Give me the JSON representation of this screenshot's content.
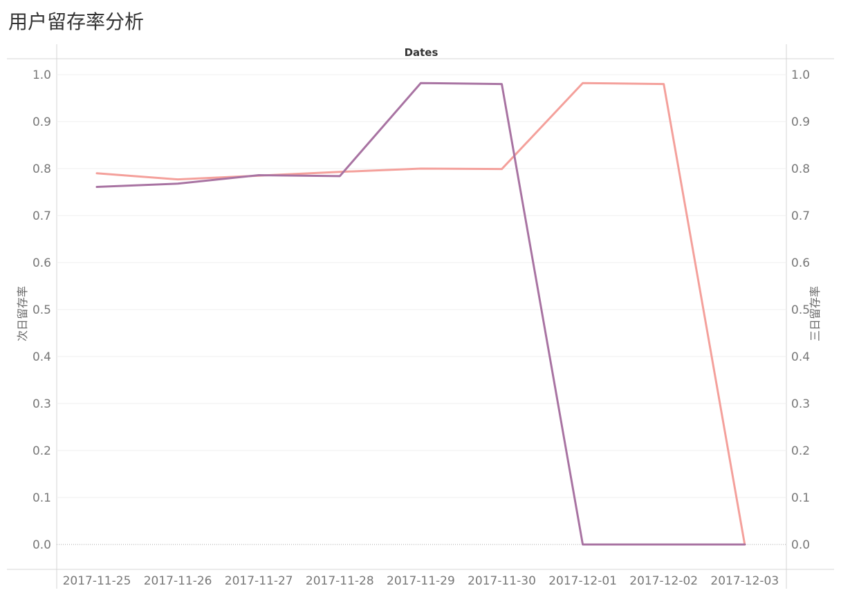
{
  "title": "用户留存率分析",
  "chart_data": {
    "type": "line",
    "header": "Dates",
    "categories": [
      "2017-11-25",
      "2017-11-26",
      "2017-11-27",
      "2017-11-28",
      "2017-11-29",
      "2017-11-30",
      "2017-12-01",
      "2017-12-02",
      "2017-12-03"
    ],
    "series": [
      {
        "axis": "left",
        "color": "#f4a09b",
        "values": [
          0.79,
          0.777,
          0.785,
          0.793,
          0.8,
          0.799,
          0.982,
          0.98,
          0.0
        ]
      },
      {
        "axis": "right",
        "color": "#a873a2",
        "values": [
          0.761,
          0.768,
          0.786,
          0.784,
          0.982,
          0.98,
          0.0,
          0.0,
          0.0
        ]
      }
    ],
    "y_left": {
      "label": "次日留存率",
      "ylim": [
        0,
        1
      ],
      "ticks": [
        "0.0",
        "0.1",
        "0.2",
        "0.3",
        "0.4",
        "0.5",
        "0.6",
        "0.7",
        "0.8",
        "0.9",
        "1.0"
      ]
    },
    "y_right": {
      "label": "三日留存率",
      "ylim": [
        0,
        1
      ],
      "ticks": [
        "0.0",
        "0.1",
        "0.2",
        "0.3",
        "0.4",
        "0.5",
        "0.6",
        "0.7",
        "0.8",
        "0.9",
        "1.0"
      ]
    },
    "grid": true,
    "zero_line": "dotted"
  }
}
